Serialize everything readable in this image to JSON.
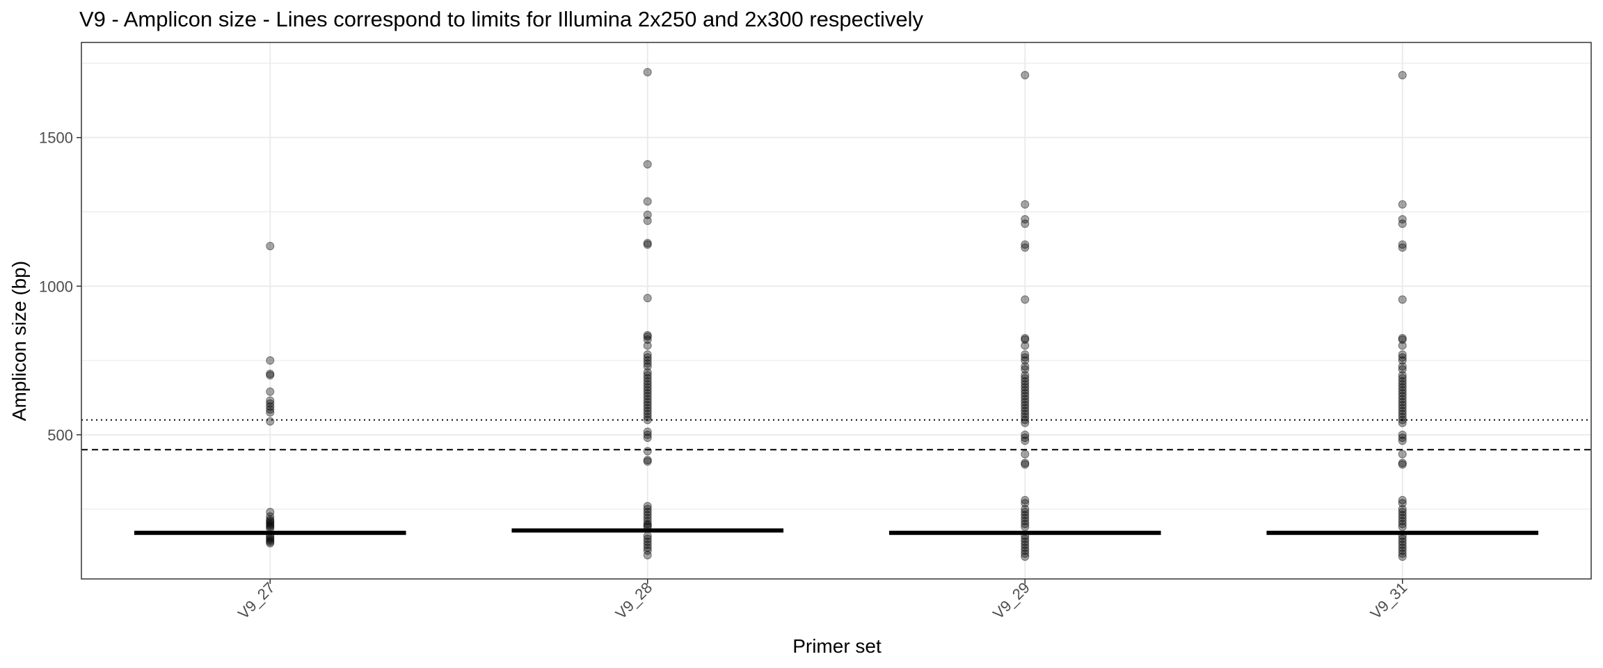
{
  "chart_data": {
    "type": "boxplot",
    "title": "V9 - Amplicon size - Lines correspond to limits for Illumina 2x250 and 2x300 respectively",
    "xlabel": "Primer set",
    "ylabel": "Amplicon size (bp)",
    "categories": [
      "V9_27",
      "V9_28",
      "V9_29",
      "V9_31"
    ],
    "ylim": [
      15,
      1820
    ],
    "yticks": [
      500,
      1000,
      1500
    ],
    "ytick_labels": [
      "500",
      "1000",
      "1500"
    ],
    "grid": true,
    "reference_lines": [
      {
        "value": 450,
        "style": "dashed"
      },
      {
        "value": 550,
        "style": "dotted"
      }
    ],
    "medians": [
      170,
      178,
      170,
      170
    ],
    "outliers": [
      [
        1135,
        750,
        705,
        700,
        645,
        615,
        605,
        595,
        585,
        575,
        545,
        240,
        225,
        215,
        210,
        205,
        200,
        195,
        190,
        185,
        160,
        155,
        150,
        145,
        140,
        135
      ],
      [
        1720,
        1410,
        1285,
        1240,
        1220,
        1145,
        1140,
        960,
        835,
        830,
        820,
        800,
        770,
        760,
        750,
        740,
        730,
        710,
        700,
        690,
        680,
        670,
        660,
        650,
        640,
        630,
        620,
        610,
        600,
        590,
        580,
        570,
        560,
        550,
        510,
        500,
        490,
        445,
        415,
        410,
        260,
        250,
        240,
        230,
        220,
        210,
        200,
        195,
        190,
        160,
        150,
        140,
        130,
        120,
        110,
        95
      ],
      [
        1710,
        1275,
        1225,
        1210,
        1140,
        1130,
        955,
        825,
        820,
        800,
        770,
        760,
        750,
        730,
        720,
        700,
        690,
        680,
        670,
        660,
        650,
        640,
        630,
        620,
        610,
        600,
        590,
        580,
        570,
        560,
        550,
        540,
        500,
        490,
        480,
        435,
        405,
        400,
        280,
        270,
        250,
        240,
        230,
        220,
        210,
        200,
        190,
        160,
        150,
        140,
        130,
        120,
        110,
        100,
        90
      ],
      [
        1710,
        1275,
        1225,
        1210,
        1140,
        1130,
        955,
        825,
        820,
        800,
        770,
        760,
        750,
        730,
        720,
        700,
        690,
        680,
        670,
        660,
        650,
        640,
        630,
        620,
        610,
        600,
        590,
        580,
        570,
        560,
        550,
        540,
        500,
        490,
        480,
        435,
        405,
        400,
        280,
        270,
        250,
        240,
        230,
        220,
        210,
        200,
        190,
        160,
        150,
        140,
        130,
        120,
        110,
        100,
        90
      ]
    ],
    "colors": {
      "panel_border": "#333333",
      "grid": "#ebebeb",
      "text": "#000000",
      "tick_text": "#4d4d4d",
      "point": "#000000",
      "median": "#000000"
    }
  }
}
